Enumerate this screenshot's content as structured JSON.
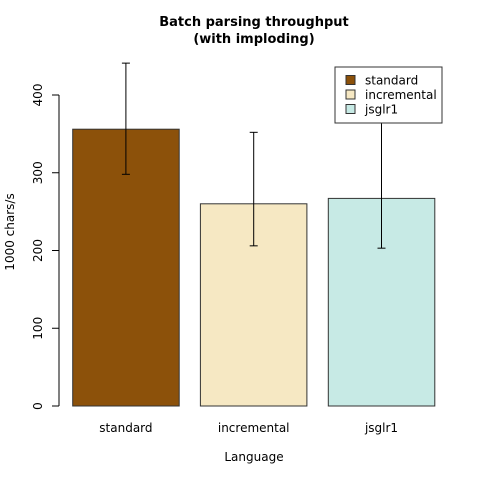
{
  "chart_data": {
    "type": "bar",
    "title_lines": [
      "Batch parsing throughput",
      "(with imploding)"
    ],
    "xlabel": "Language",
    "ylabel": "1000 chars/s",
    "categories": [
      "standard",
      "incremental",
      "jsglr1"
    ],
    "values": [
      356,
      260,
      267
    ],
    "error_low": [
      298,
      206,
      203
    ],
    "error_high": [
      441,
      352,
      397
    ],
    "colors": [
      "#8c510a",
      "#f6e8c3",
      "#c7eae5"
    ],
    "ylim": [
      0,
      400
    ],
    "yticks": [
      "0",
      "100",
      "200",
      "300",
      "400"
    ],
    "grid": false,
    "legend_position": "top-right",
    "legend": [
      {
        "label": "standard",
        "color": "#8c510a"
      },
      {
        "label": "incremental",
        "color": "#f6e8c3"
      },
      {
        "label": "jsglr1",
        "color": "#c7eae5"
      }
    ]
  }
}
